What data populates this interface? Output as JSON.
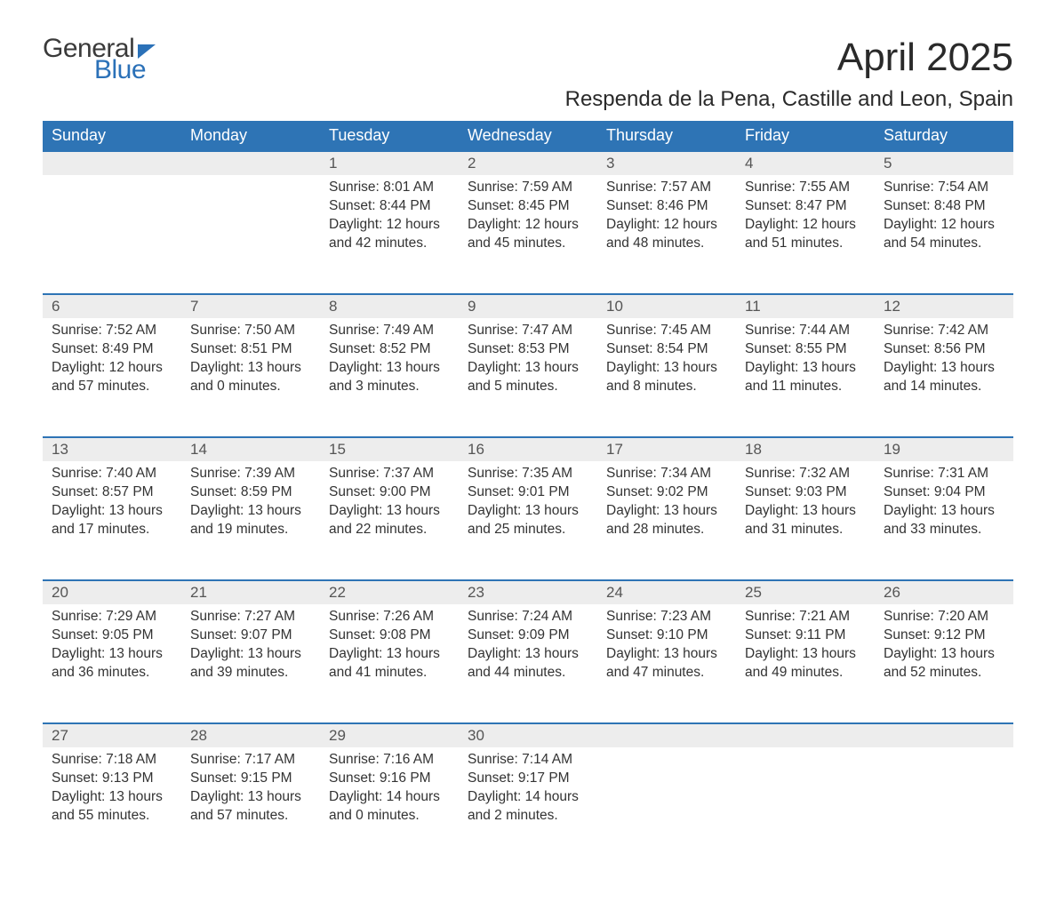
{
  "logo": {
    "word1": "General",
    "word2": "Blue"
  },
  "title": "April 2025",
  "location": "Respenda de la Pena, Castille and Leon, Spain",
  "colors": {
    "header_bg": "#2e74b5",
    "header_text": "#ffffff",
    "daynum_bg": "#ededed",
    "rule": "#2e74b5",
    "text": "#333333",
    "logo_blue": "#2b71b8",
    "logo_gray": "#3a3a3a"
  },
  "dayNames": [
    "Sunday",
    "Monday",
    "Tuesday",
    "Wednesday",
    "Thursday",
    "Friday",
    "Saturday"
  ],
  "weeks": [
    [
      null,
      null,
      {
        "n": "1",
        "sr": "Sunrise: 8:01 AM",
        "ss": "Sunset: 8:44 PM",
        "d1": "Daylight: 12 hours",
        "d2": "and 42 minutes."
      },
      {
        "n": "2",
        "sr": "Sunrise: 7:59 AM",
        "ss": "Sunset: 8:45 PM",
        "d1": "Daylight: 12 hours",
        "d2": "and 45 minutes."
      },
      {
        "n": "3",
        "sr": "Sunrise: 7:57 AM",
        "ss": "Sunset: 8:46 PM",
        "d1": "Daylight: 12 hours",
        "d2": "and 48 minutes."
      },
      {
        "n": "4",
        "sr": "Sunrise: 7:55 AM",
        "ss": "Sunset: 8:47 PM",
        "d1": "Daylight: 12 hours",
        "d2": "and 51 minutes."
      },
      {
        "n": "5",
        "sr": "Sunrise: 7:54 AM",
        "ss": "Sunset: 8:48 PM",
        "d1": "Daylight: 12 hours",
        "d2": "and 54 minutes."
      }
    ],
    [
      {
        "n": "6",
        "sr": "Sunrise: 7:52 AM",
        "ss": "Sunset: 8:49 PM",
        "d1": "Daylight: 12 hours",
        "d2": "and 57 minutes."
      },
      {
        "n": "7",
        "sr": "Sunrise: 7:50 AM",
        "ss": "Sunset: 8:51 PM",
        "d1": "Daylight: 13 hours",
        "d2": "and 0 minutes."
      },
      {
        "n": "8",
        "sr": "Sunrise: 7:49 AM",
        "ss": "Sunset: 8:52 PM",
        "d1": "Daylight: 13 hours",
        "d2": "and 3 minutes."
      },
      {
        "n": "9",
        "sr": "Sunrise: 7:47 AM",
        "ss": "Sunset: 8:53 PM",
        "d1": "Daylight: 13 hours",
        "d2": "and 5 minutes."
      },
      {
        "n": "10",
        "sr": "Sunrise: 7:45 AM",
        "ss": "Sunset: 8:54 PM",
        "d1": "Daylight: 13 hours",
        "d2": "and 8 minutes."
      },
      {
        "n": "11",
        "sr": "Sunrise: 7:44 AM",
        "ss": "Sunset: 8:55 PM",
        "d1": "Daylight: 13 hours",
        "d2": "and 11 minutes."
      },
      {
        "n": "12",
        "sr": "Sunrise: 7:42 AM",
        "ss": "Sunset: 8:56 PM",
        "d1": "Daylight: 13 hours",
        "d2": "and 14 minutes."
      }
    ],
    [
      {
        "n": "13",
        "sr": "Sunrise: 7:40 AM",
        "ss": "Sunset: 8:57 PM",
        "d1": "Daylight: 13 hours",
        "d2": "and 17 minutes."
      },
      {
        "n": "14",
        "sr": "Sunrise: 7:39 AM",
        "ss": "Sunset: 8:59 PM",
        "d1": "Daylight: 13 hours",
        "d2": "and 19 minutes."
      },
      {
        "n": "15",
        "sr": "Sunrise: 7:37 AM",
        "ss": "Sunset: 9:00 PM",
        "d1": "Daylight: 13 hours",
        "d2": "and 22 minutes."
      },
      {
        "n": "16",
        "sr": "Sunrise: 7:35 AM",
        "ss": "Sunset: 9:01 PM",
        "d1": "Daylight: 13 hours",
        "d2": "and 25 minutes."
      },
      {
        "n": "17",
        "sr": "Sunrise: 7:34 AM",
        "ss": "Sunset: 9:02 PM",
        "d1": "Daylight: 13 hours",
        "d2": "and 28 minutes."
      },
      {
        "n": "18",
        "sr": "Sunrise: 7:32 AM",
        "ss": "Sunset: 9:03 PM",
        "d1": "Daylight: 13 hours",
        "d2": "and 31 minutes."
      },
      {
        "n": "19",
        "sr": "Sunrise: 7:31 AM",
        "ss": "Sunset: 9:04 PM",
        "d1": "Daylight: 13 hours",
        "d2": "and 33 minutes."
      }
    ],
    [
      {
        "n": "20",
        "sr": "Sunrise: 7:29 AM",
        "ss": "Sunset: 9:05 PM",
        "d1": "Daylight: 13 hours",
        "d2": "and 36 minutes."
      },
      {
        "n": "21",
        "sr": "Sunrise: 7:27 AM",
        "ss": "Sunset: 9:07 PM",
        "d1": "Daylight: 13 hours",
        "d2": "and 39 minutes."
      },
      {
        "n": "22",
        "sr": "Sunrise: 7:26 AM",
        "ss": "Sunset: 9:08 PM",
        "d1": "Daylight: 13 hours",
        "d2": "and 41 minutes."
      },
      {
        "n": "23",
        "sr": "Sunrise: 7:24 AM",
        "ss": "Sunset: 9:09 PM",
        "d1": "Daylight: 13 hours",
        "d2": "and 44 minutes."
      },
      {
        "n": "24",
        "sr": "Sunrise: 7:23 AM",
        "ss": "Sunset: 9:10 PM",
        "d1": "Daylight: 13 hours",
        "d2": "and 47 minutes."
      },
      {
        "n": "25",
        "sr": "Sunrise: 7:21 AM",
        "ss": "Sunset: 9:11 PM",
        "d1": "Daylight: 13 hours",
        "d2": "and 49 minutes."
      },
      {
        "n": "26",
        "sr": "Sunrise: 7:20 AM",
        "ss": "Sunset: 9:12 PM",
        "d1": "Daylight: 13 hours",
        "d2": "and 52 minutes."
      }
    ],
    [
      {
        "n": "27",
        "sr": "Sunrise: 7:18 AM",
        "ss": "Sunset: 9:13 PM",
        "d1": "Daylight: 13 hours",
        "d2": "and 55 minutes."
      },
      {
        "n": "28",
        "sr": "Sunrise: 7:17 AM",
        "ss": "Sunset: 9:15 PM",
        "d1": "Daylight: 13 hours",
        "d2": "and 57 minutes."
      },
      {
        "n": "29",
        "sr": "Sunrise: 7:16 AM",
        "ss": "Sunset: 9:16 PM",
        "d1": "Daylight: 14 hours",
        "d2": "and 0 minutes."
      },
      {
        "n": "30",
        "sr": "Sunrise: 7:14 AM",
        "ss": "Sunset: 9:17 PM",
        "d1": "Daylight: 14 hours",
        "d2": "and 2 minutes."
      },
      null,
      null,
      null
    ]
  ]
}
